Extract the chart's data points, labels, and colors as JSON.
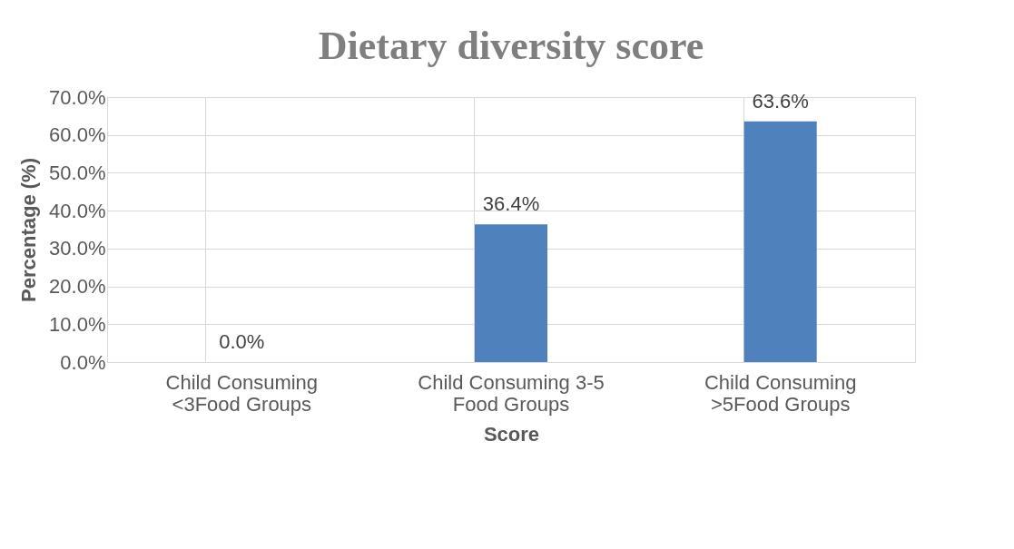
{
  "chart_data": {
    "type": "bar",
    "title": "Dietary diversity score",
    "xlabel": "Score",
    "ylabel": "Percentage (%)",
    "categories": [
      "Child Consuming <3Food Groups",
      "Child Consuming 3-5 Food Groups",
      "Child Consuming >5Food Groups"
    ],
    "values": [
      0.0,
      36.4,
      63.6
    ],
    "color": "#4f81bd",
    "value_labels": [
      "0.0%",
      "36.4%",
      "63.6%"
    ],
    "ylim": [
      0,
      70
    ],
    "yticks": [
      {
        "value": 0,
        "label": "0.0%"
      },
      {
        "value": 10,
        "label": "10.0%"
      },
      {
        "value": 20,
        "label": "20.0%"
      },
      {
        "value": 30,
        "label": "30.0%"
      },
      {
        "value": 40,
        "label": "40.0%"
      },
      {
        "value": 50,
        "label": "50.0%"
      },
      {
        "value": 60,
        "label": "60.0%"
      },
      {
        "value": 70,
        "label": "70.0%"
      }
    ],
    "grid": true
  }
}
